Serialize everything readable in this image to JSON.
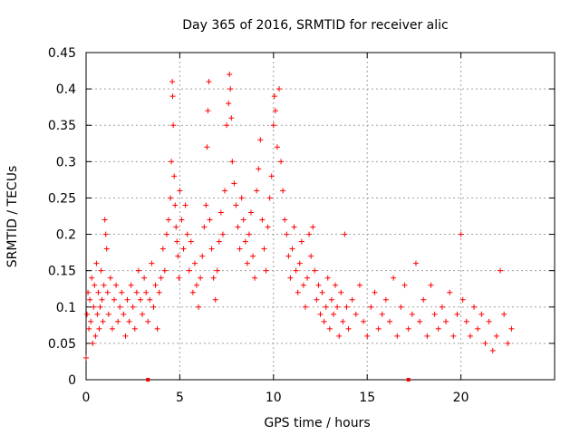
{
  "chart_data": {
    "type": "scatter",
    "title": "Day 365 of 2016, SRMTID for receiver alic",
    "xlabel": "GPS time / hours",
    "ylabel": "SRMTID / TECUs",
    "xlim": [
      0,
      25
    ],
    "ylim": [
      0,
      0.45
    ],
    "x_ticks": [
      0,
      5,
      10,
      15,
      20
    ],
    "x_tick_labels": [
      "0",
      "5",
      "10",
      "15",
      "20"
    ],
    "y_ticks": [
      0,
      0.05,
      0.1,
      0.15,
      0.2,
      0.25,
      0.3,
      0.35,
      0.4,
      0.45
    ],
    "y_tick_labels": [
      "0",
      "0.05",
      "0.1",
      "0.15",
      "0.2",
      "0.25",
      "0.3",
      "0.35",
      "0.4",
      "0.45"
    ],
    "grid": true,
    "marker": "+",
    "color": "#ff0000",
    "x_axis_marks": [
      3.3,
      17.2
    ],
    "series": [
      {
        "name": "SRMTID",
        "points": [
          [
            0.0,
            0.03
          ],
          [
            0.05,
            0.09
          ],
          [
            0.1,
            0.12
          ],
          [
            0.15,
            0.07
          ],
          [
            0.2,
            0.11
          ],
          [
            0.25,
            0.08
          ],
          [
            0.3,
            0.14
          ],
          [
            0.35,
            0.05
          ],
          [
            0.4,
            0.1
          ],
          [
            0.45,
            0.13
          ],
          [
            0.5,
            0.06
          ],
          [
            0.55,
            0.16
          ],
          [
            0.6,
            0.09
          ],
          [
            0.65,
            0.12
          ],
          [
            0.7,
            0.07
          ],
          [
            0.75,
            0.1
          ],
          [
            0.8,
            0.15
          ],
          [
            0.85,
            0.11
          ],
          [
            0.9,
            0.08
          ],
          [
            0.95,
            0.13
          ],
          [
            1.0,
            0.22
          ],
          [
            1.05,
            0.2
          ],
          [
            1.1,
            0.18
          ],
          [
            1.15,
            0.12
          ],
          [
            1.2,
            0.09
          ],
          [
            1.3,
            0.14
          ],
          [
            1.4,
            0.07
          ],
          [
            1.5,
            0.11
          ],
          [
            1.6,
            0.13
          ],
          [
            1.7,
            0.08
          ],
          [
            1.8,
            0.1
          ],
          [
            1.9,
            0.12
          ],
          [
            2.0,
            0.09
          ],
          [
            2.1,
            0.06
          ],
          [
            2.2,
            0.11
          ],
          [
            2.3,
            0.08
          ],
          [
            2.4,
            0.13
          ],
          [
            2.5,
            0.1
          ],
          [
            2.6,
            0.07
          ],
          [
            2.7,
            0.12
          ],
          [
            2.8,
            0.15
          ],
          [
            2.9,
            0.11
          ],
          [
            3.0,
            0.09
          ],
          [
            3.1,
            0.14
          ],
          [
            3.2,
            0.12
          ],
          [
            3.3,
            0.08
          ],
          [
            3.4,
            0.11
          ],
          [
            3.5,
            0.16
          ],
          [
            3.6,
            0.1
          ],
          [
            3.7,
            0.13
          ],
          [
            3.8,
            0.07
          ],
          [
            3.9,
            0.12
          ],
          [
            4.0,
            0.14
          ],
          [
            4.1,
            0.18
          ],
          [
            4.2,
            0.15
          ],
          [
            4.3,
            0.2
          ],
          [
            4.4,
            0.22
          ],
          [
            4.5,
            0.25
          ],
          [
            4.55,
            0.3
          ],
          [
            4.6,
            0.41
          ],
          [
            4.62,
            0.39
          ],
          [
            4.65,
            0.35
          ],
          [
            4.7,
            0.28
          ],
          [
            4.75,
            0.24
          ],
          [
            4.8,
            0.21
          ],
          [
            4.85,
            0.19
          ],
          [
            4.9,
            0.17
          ],
          [
            4.95,
            0.14
          ],
          [
            5.0,
            0.26
          ],
          [
            5.1,
            0.22
          ],
          [
            5.2,
            0.18
          ],
          [
            5.3,
            0.24
          ],
          [
            5.4,
            0.2
          ],
          [
            5.5,
            0.15
          ],
          [
            5.6,
            0.19
          ],
          [
            5.7,
            0.12
          ],
          [
            5.8,
            0.16
          ],
          [
            5.9,
            0.13
          ],
          [
            6.0,
            0.1
          ],
          [
            6.1,
            0.14
          ],
          [
            6.2,
            0.17
          ],
          [
            6.3,
            0.21
          ],
          [
            6.4,
            0.24
          ],
          [
            6.45,
            0.32
          ],
          [
            6.5,
            0.37
          ],
          [
            6.55,
            0.41
          ],
          [
            6.6,
            0.22
          ],
          [
            6.7,
            0.18
          ],
          [
            6.8,
            0.14
          ],
          [
            6.9,
            0.11
          ],
          [
            7.0,
            0.15
          ],
          [
            7.1,
            0.19
          ],
          [
            7.2,
            0.23
          ],
          [
            7.3,
            0.2
          ],
          [
            7.4,
            0.26
          ],
          [
            7.5,
            0.35
          ],
          [
            7.6,
            0.38
          ],
          [
            7.65,
            0.42
          ],
          [
            7.7,
            0.4
          ],
          [
            7.75,
            0.36
          ],
          [
            7.8,
            0.3
          ],
          [
            7.9,
            0.27
          ],
          [
            8.0,
            0.24
          ],
          [
            8.1,
            0.21
          ],
          [
            8.2,
            0.18
          ],
          [
            8.3,
            0.25
          ],
          [
            8.4,
            0.22
          ],
          [
            8.5,
            0.19
          ],
          [
            8.6,
            0.16
          ],
          [
            8.7,
            0.2
          ],
          [
            8.8,
            0.23
          ],
          [
            8.9,
            0.17
          ],
          [
            9.0,
            0.14
          ],
          [
            9.1,
            0.26
          ],
          [
            9.2,
            0.29
          ],
          [
            9.3,
            0.33
          ],
          [
            9.4,
            0.22
          ],
          [
            9.5,
            0.18
          ],
          [
            9.6,
            0.15
          ],
          [
            9.7,
            0.21
          ],
          [
            9.8,
            0.25
          ],
          [
            9.9,
            0.28
          ],
          [
            10.0,
            0.35
          ],
          [
            10.05,
            0.39
          ],
          [
            10.1,
            0.37
          ],
          [
            10.2,
            0.32
          ],
          [
            10.3,
            0.4
          ],
          [
            10.4,
            0.3
          ],
          [
            10.5,
            0.26
          ],
          [
            10.6,
            0.22
          ],
          [
            10.7,
            0.2
          ],
          [
            10.8,
            0.17
          ],
          [
            10.9,
            0.14
          ],
          [
            11.0,
            0.18
          ],
          [
            11.1,
            0.21
          ],
          [
            11.2,
            0.15
          ],
          [
            11.3,
            0.12
          ],
          [
            11.4,
            0.16
          ],
          [
            11.5,
            0.19
          ],
          [
            11.6,
            0.13
          ],
          [
            11.7,
            0.1
          ],
          [
            11.8,
            0.14
          ],
          [
            11.9,
            0.2
          ],
          [
            12.0,
            0.17
          ],
          [
            12.1,
            0.21
          ],
          [
            12.2,
            0.15
          ],
          [
            12.3,
            0.11
          ],
          [
            12.4,
            0.13
          ],
          [
            12.5,
            0.09
          ],
          [
            12.6,
            0.12
          ],
          [
            12.7,
            0.08
          ],
          [
            12.8,
            0.1
          ],
          [
            12.9,
            0.14
          ],
          [
            13.0,
            0.07
          ],
          [
            13.1,
            0.11
          ],
          [
            13.2,
            0.09
          ],
          [
            13.3,
            0.13
          ],
          [
            13.4,
            0.1
          ],
          [
            13.5,
            0.06
          ],
          [
            13.6,
            0.12
          ],
          [
            13.7,
            0.08
          ],
          [
            13.8,
            0.2
          ],
          [
            13.9,
            0.1
          ],
          [
            14.0,
            0.07
          ],
          [
            14.2,
            0.11
          ],
          [
            14.4,
            0.09
          ],
          [
            14.6,
            0.13
          ],
          [
            14.8,
            0.08
          ],
          [
            15.0,
            0.06
          ],
          [
            15.2,
            0.1
          ],
          [
            15.4,
            0.12
          ],
          [
            15.6,
            0.07
          ],
          [
            15.8,
            0.09
          ],
          [
            16.0,
            0.11
          ],
          [
            16.2,
            0.08
          ],
          [
            16.4,
            0.14
          ],
          [
            16.6,
            0.06
          ],
          [
            16.8,
            0.1
          ],
          [
            17.0,
            0.13
          ],
          [
            17.2,
            0.07
          ],
          [
            17.4,
            0.09
          ],
          [
            17.6,
            0.16
          ],
          [
            17.8,
            0.08
          ],
          [
            18.0,
            0.11
          ],
          [
            18.2,
            0.06
          ],
          [
            18.4,
            0.13
          ],
          [
            18.6,
            0.09
          ],
          [
            18.8,
            0.07
          ],
          [
            19.0,
            0.1
          ],
          [
            19.2,
            0.08
          ],
          [
            19.4,
            0.12
          ],
          [
            19.6,
            0.06
          ],
          [
            19.8,
            0.09
          ],
          [
            20.0,
            0.2
          ],
          [
            20.1,
            0.11
          ],
          [
            20.3,
            0.08
          ],
          [
            20.5,
            0.06
          ],
          [
            20.7,
            0.1
          ],
          [
            20.9,
            0.07
          ],
          [
            21.1,
            0.09
          ],
          [
            21.3,
            0.05
          ],
          [
            21.5,
            0.08
          ],
          [
            21.7,
            0.04
          ],
          [
            21.9,
            0.06
          ],
          [
            22.1,
            0.15
          ],
          [
            22.3,
            0.09
          ],
          [
            22.5,
            0.05
          ],
          [
            22.7,
            0.07
          ]
        ]
      }
    ]
  }
}
